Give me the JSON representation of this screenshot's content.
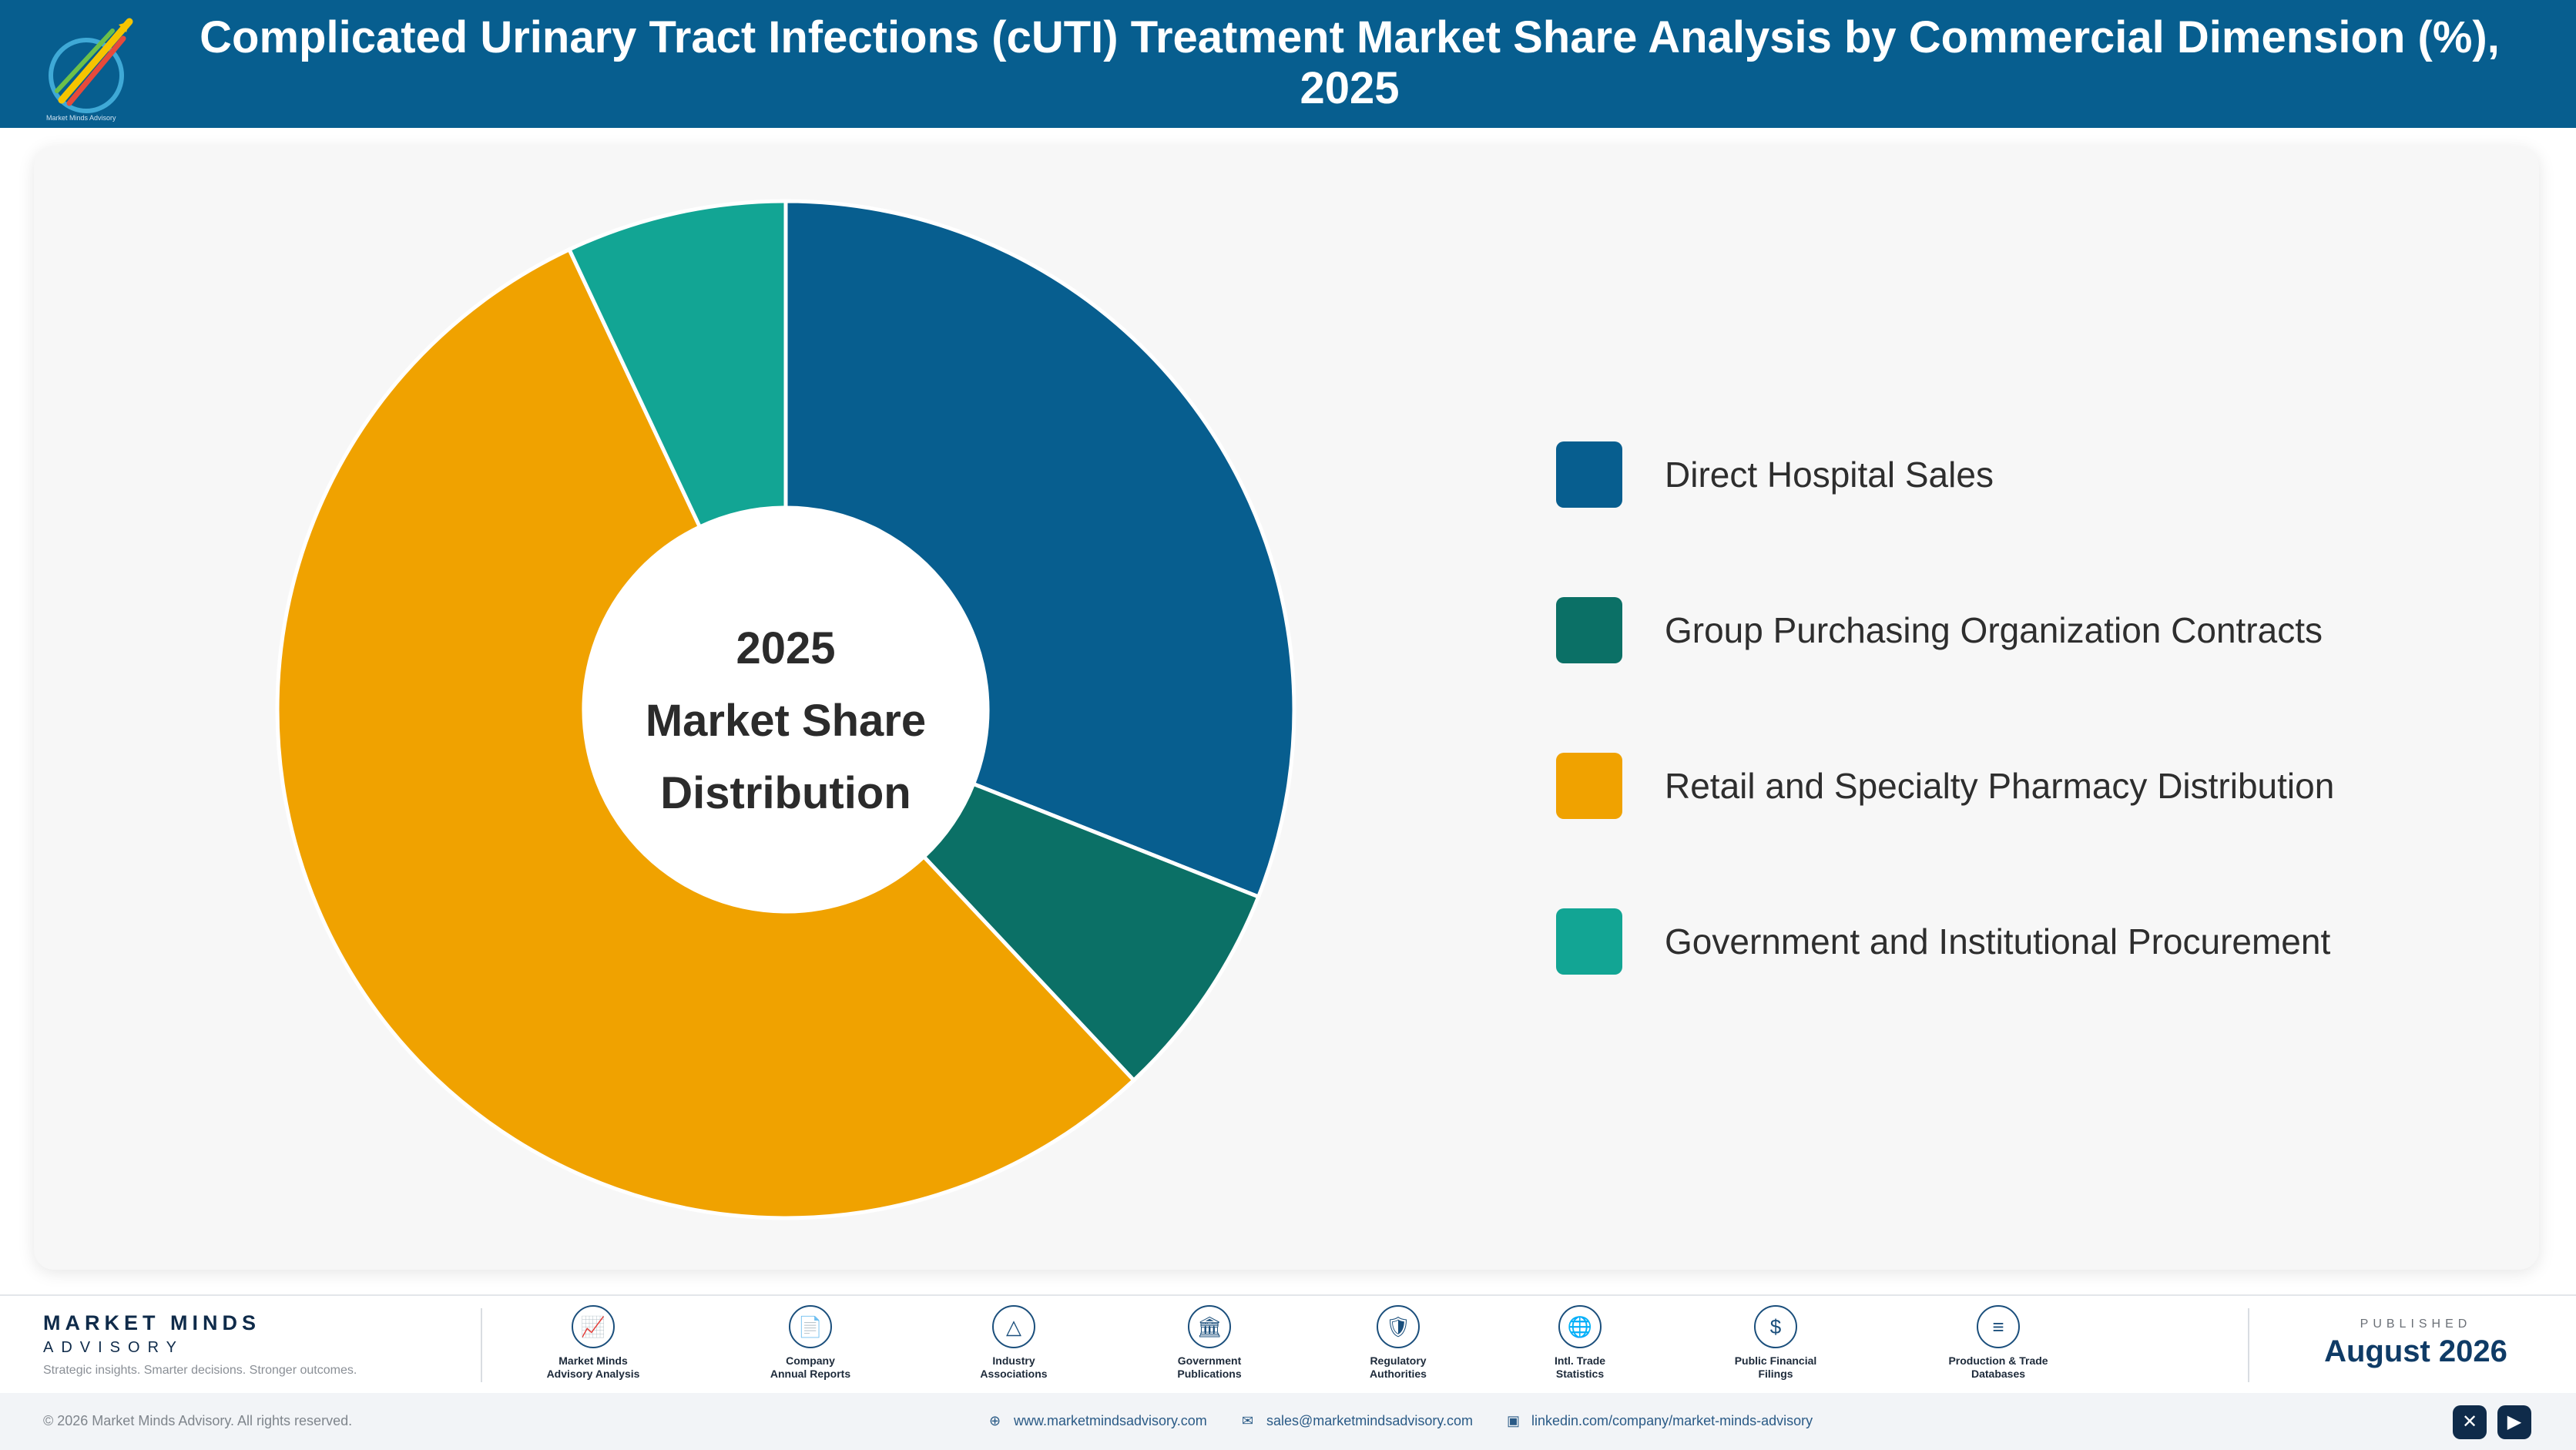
{
  "header": {
    "title": "Complicated Urinary Tract Infections (cUTI) Treatment Market Share Analysis by Commercial Dimension (%), 2025",
    "logo_icon": "market-minds-logo-icon"
  },
  "chart_data": {
    "type": "pie",
    "variant": "donut",
    "center_label": [
      "2025",
      "Market Share",
      "Distribution"
    ],
    "categories": [
      "Direct Hospital Sales",
      "Group Purchasing Organization Contracts",
      "Retail and Specialty Pharmacy Distribution",
      "Government and Institutional Procurement"
    ],
    "values": [
      31,
      7,
      55,
      7
    ],
    "colors": [
      "#075e8f",
      "#0b7066",
      "#f0a200",
      "#12a594"
    ],
    "legend_position": "right",
    "data_labels": false
  },
  "legend": {
    "items": [
      {
        "label": "Direct Hospital Sales",
        "color": "#075e8f"
      },
      {
        "label": "Group Purchasing Organization Contracts",
        "color": "#0b7066"
      },
      {
        "label": "Retail and Specialty Pharmacy Distribution",
        "color": "#f0a200"
      },
      {
        "label": "Government and Institutional Procurement",
        "color": "#12a594"
      }
    ]
  },
  "footer": {
    "brand": {
      "name": "MARKET MINDS",
      "sub": "ADVISORY",
      "tagline": "Strategic insights. Smarter decisions. Stronger outcomes."
    },
    "sources": [
      {
        "icon": "trend-chart-icon",
        "glyph": "📈",
        "line1": "Market Minds",
        "line2": "Advisory Analysis"
      },
      {
        "icon": "document-icon",
        "glyph": "📄",
        "line1": "Company",
        "line2": "Annual Reports"
      },
      {
        "icon": "network-icon",
        "glyph": "△",
        "line1": "Industry",
        "line2": "Associations"
      },
      {
        "icon": "government-building-icon",
        "glyph": "🏛",
        "line1": "Government",
        "line2": "Publications"
      },
      {
        "icon": "shield-check-icon",
        "glyph": "🛡",
        "line1": "Regulatory",
        "line2": "Authorities"
      },
      {
        "icon": "globe-icon",
        "glyph": "🌐",
        "line1": "Intl. Trade",
        "line2": "Statistics"
      },
      {
        "icon": "currency-coin-icon",
        "glyph": "$",
        "line1": "Public Financial",
        "line2": "Filings"
      },
      {
        "icon": "database-icon",
        "glyph": "≡",
        "line1": "Production & Trade",
        "line2": "Databases"
      }
    ],
    "published_label": "PUBLISHED",
    "published_date": "August 2026"
  },
  "bottombar": {
    "copyright": "© 2026 Market Minds Advisory. All rights reserved.",
    "website": "www.marketmindsadvisory.com",
    "email": "sales@marketmindsadvisory.com",
    "linkedin": "linkedin.com/company/market-minds-advisory",
    "social_icons": [
      "x-icon",
      "youtube-icon"
    ]
  }
}
